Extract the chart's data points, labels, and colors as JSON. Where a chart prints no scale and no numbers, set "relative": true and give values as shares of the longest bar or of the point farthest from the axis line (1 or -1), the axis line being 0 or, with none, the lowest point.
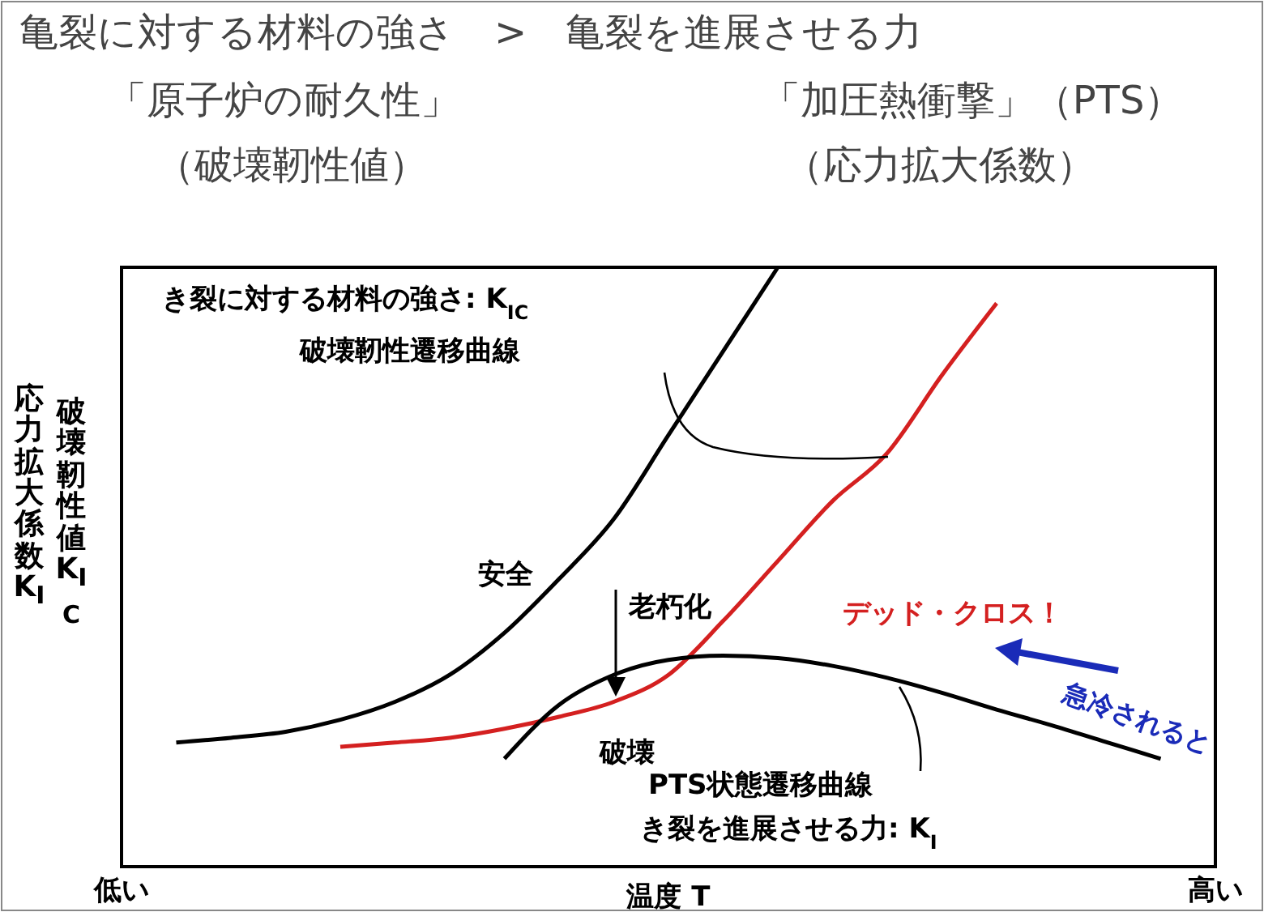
{
  "chart_data": {
    "type": "line",
    "relative": true,
    "title": "亀裂に対する材料の強さ　>　亀裂を進展させる力",
    "xlabel": "温度 T",
    "ylabel": "応力拡大係数 K$_{I}$\n破壊靭性値 K$_{IC}$",
    "marker": "none",
    "line_style": "solid",
    "categories": [
      "低い",
      null,
      null,
      null,
      null,
      null,
      null,
      null,
      null,
      null,
      null,
      null,
      null,
      null,
      null,
      null,
      null,
      null,
      null,
      null,
      "高い"
    ],
    "annotations": [
      "「原子炉の耐久性」",
      "（破壊靭性値）",
      "「加圧熱衝撃」（PTS）",
      "（応力拡大係数）",
      "き裂に対する材料の強さ: K$_{IC}$",
      "破壊靭性遷移曲線",
      "安全",
      "老朽化",
      "破壊",
      "デッド・クロス！",
      "急冷されると",
      "PTS状態遷移曲線",
      "き裂を進展させる力: K$_{I}$"
    ],
    "series": [
      {
        "color": "#000000",
        "values": [
          null,
          0.207,
          0.215,
          0.225,
          0.245,
          0.275,
          0.32,
          0.39,
          0.48,
          0.58,
          0.72,
          0.86,
          1.0,
          null,
          null,
          null,
          null,
          null,
          null,
          null,
          null
        ]
      },
      {
        "color": "#d42020",
        "values": [
          null,
          null,
          null,
          null,
          0.2,
          0.207,
          0.215,
          0.23,
          0.25,
          0.275,
          0.32,
          0.41,
          0.51,
          0.61,
          0.69,
          0.82,
          0.94,
          null,
          null,
          null,
          null
        ]
      },
      {
        "color": "#000000",
        "values": [
          null,
          null,
          null,
          null,
          null,
          null,
          null,
          0.18,
          0.27,
          0.32,
          0.345,
          0.352,
          0.348,
          0.335,
          0.315,
          0.29,
          0.262,
          0.236,
          0.208,
          0.18,
          null
        ]
      }
    ]
  }
}
